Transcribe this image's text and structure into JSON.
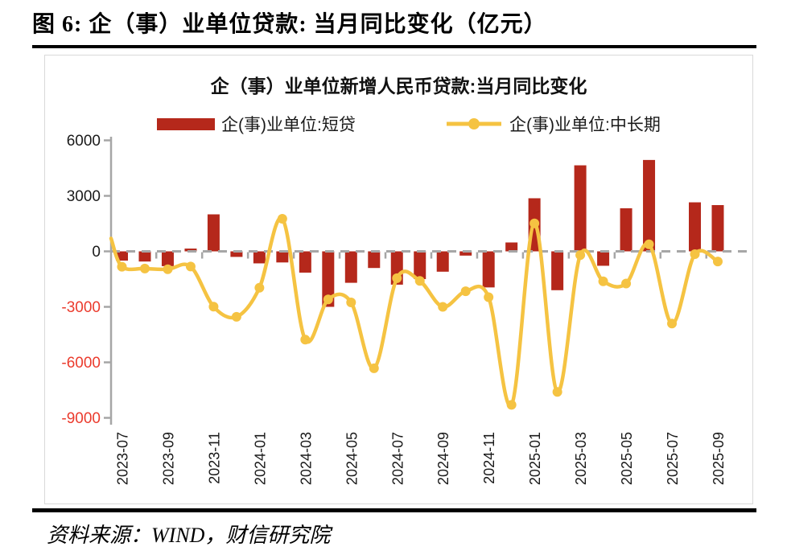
{
  "page": {
    "title": "图 6:  企（事）业单位贷款:  当月同比变化（亿元）",
    "source": "资料来源：WIND，财信研究院"
  },
  "colors": {
    "bar_red": "#b5281b",
    "line_gold": "#f5c342",
    "axis_gray": "#a6a6a6",
    "panel_border_gray": "#d9d9d9",
    "negative_tick_red": "#eb3b2d",
    "tick_text_black": "#1a1a1a"
  },
  "chart_data": {
    "type": "bar",
    "subtype": "bar-line-combo",
    "title": "企（事）业单位新增人民币贷款:当月同比变化",
    "ylabel": "",
    "xlabel": "",
    "ylim": [
      -9000,
      6000
    ],
    "yticks": [
      6000,
      3000,
      0,
      -3000,
      -6000,
      -9000
    ],
    "grid": false,
    "legend_position": "top",
    "zero_line_style": "dashed-gray",
    "categories": [
      "2023-07",
      "2023-08",
      "2023-09",
      "2023-10",
      "2023-11",
      "2023-12",
      "2024-01",
      "2024-02",
      "2024-03",
      "2024-04",
      "2024-05",
      "2024-06",
      "2024-07",
      "2024-08",
      "2024-09",
      "2024-10",
      "2024-11",
      "2024-12",
      "2025-01",
      "2025-02",
      "2025-03",
      "2025-04",
      "2025-05",
      "2025-06",
      "2025-07",
      "2025-08",
      "2025-09"
    ],
    "x_tick_labels": [
      "2023-07",
      "2023-09",
      "2023-11",
      "2024-01",
      "2024-03",
      "2024-05",
      "2024-07",
      "2024-09",
      "2024-11",
      "2025-01",
      "2025-03",
      "2025-05",
      "2025-07",
      "2025-09"
    ],
    "series": [
      {
        "name": "企(事)业单位:短贷",
        "type": "bar",
        "color": "#b5281b",
        "values": [
          -500,
          -550,
          -800,
          150,
          2000,
          -300,
          -650,
          -600,
          -1150,
          -3000,
          -1700,
          -900,
          -1800,
          -1500,
          -1100,
          -230,
          -1950,
          480,
          2870,
          -2100,
          4650,
          -780,
          2330,
          4940,
          0,
          2650,
          2500
        ]
      },
      {
        "name": "企(事)业单位:中长期",
        "type": "line",
        "smooth": true,
        "color": "#f5c342",
        "lead_in_value": 700,
        "values": [
          -830,
          -930,
          -970,
          -820,
          -2990,
          -3540,
          -1970,
          1760,
          -4770,
          -2600,
          -2760,
          -6320,
          -1450,
          -1600,
          -3000,
          -2160,
          -2480,
          -8300,
          1510,
          -7600,
          -200,
          -1620,
          -1740,
          380,
          -3900,
          -150,
          -550
        ]
      }
    ]
  }
}
